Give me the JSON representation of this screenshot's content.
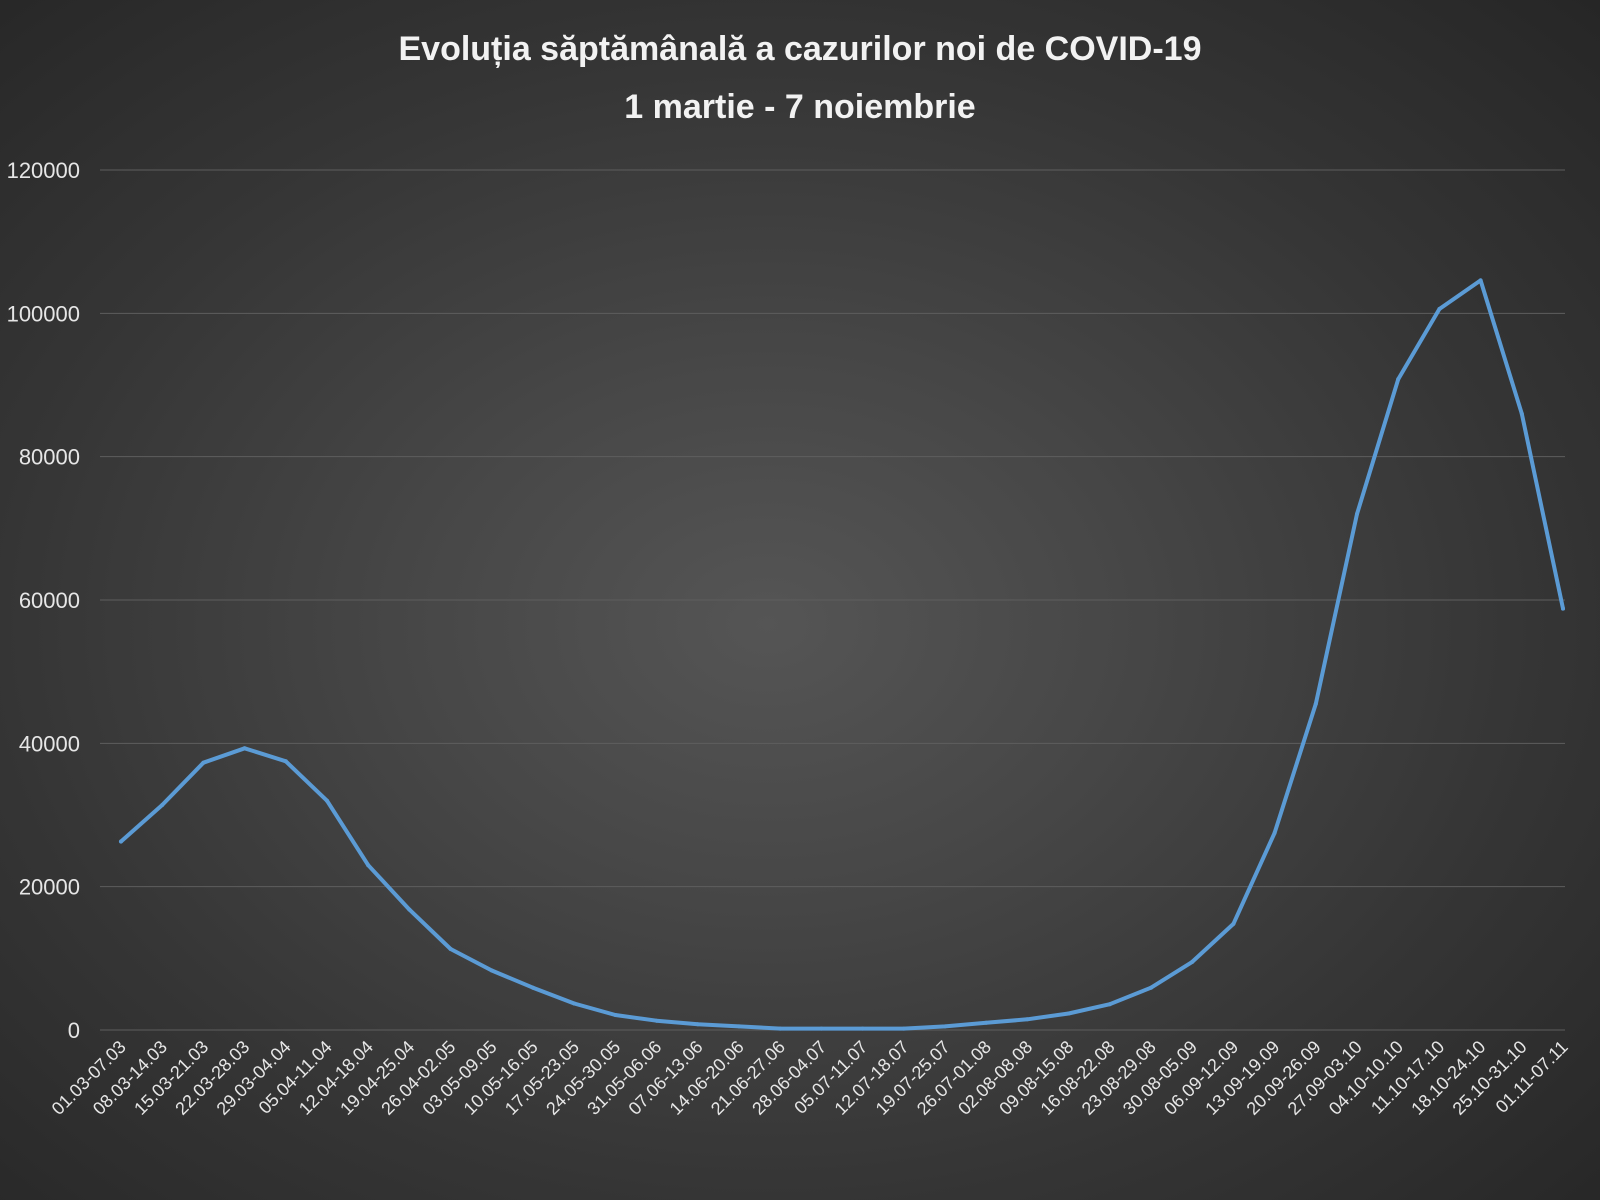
{
  "chart_data": {
    "type": "line",
    "title": "Evoluția săptămânală  a cazurilor noi de COVID-19",
    "subtitle": "1 martie - 7 noiembrie",
    "xlabel": "",
    "ylabel": "",
    "ylim": [
      0,
      120000
    ],
    "yticks": [
      "0",
      "20000",
      "40000",
      "60000",
      "80000",
      "100000",
      "120000"
    ],
    "grid": true,
    "line_color": "#5b9bd5",
    "categories": [
      "01.03-07.03",
      "08.03-14.03",
      "15.03-21.03",
      "22.03-28.03",
      "29.03-04.04",
      "05.04-11.04",
      "12.04-18.04",
      "19.04-25.04",
      "26.04-02.05",
      "03.05-09.05",
      "10.05-16.05",
      "17.05-23.05",
      "24.05-30.05",
      "31.05-06.06",
      "07.06-13.06",
      "14.06-20.06",
      "21.06-27.06",
      "28.06-04.07",
      "05.07-11.07",
      "12.07-18.07",
      "19.07-25.07",
      "26.07-01.08",
      "02.08-08.08",
      "09.08-15.08",
      "16.08-22.08",
      "23.08-29.08",
      "30.08-05.09",
      "06.09-12.09",
      "13.09-19.09",
      "20.09-26.09",
      "27.09-03.10",
      "04.10-10.10",
      "11.10-17.10",
      "18.10-24.10",
      "25.10-31.10",
      "01.11-07.11"
    ],
    "series": [
      {
        "values": [
          26300,
          31400,
          37300,
          39300,
          37500,
          32000,
          23000,
          16800,
          11300,
          8300,
          5900,
          3700,
          2100,
          1300,
          800,
          500,
          200,
          200,
          200,
          200,
          500,
          1000,
          1500,
          2300,
          3600,
          5900,
          9500,
          14800,
          27500,
          45500,
          72000,
          90800,
          100600,
          104600,
          86000,
          58800
        ]
      }
    ]
  }
}
